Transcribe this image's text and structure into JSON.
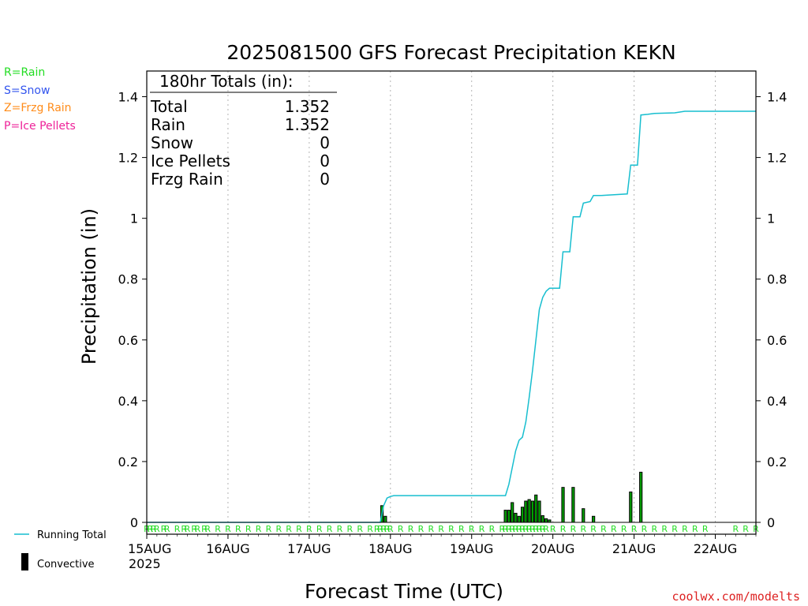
{
  "colors": {
    "running_total": "#17becf",
    "convective_bar": "#000000",
    "precip_bar": "#00a000",
    "rain": "#22dd22",
    "snow": "#3355ee",
    "frzg_rain": "#ff8c1a",
    "ice_pellets": "#ee2299",
    "grid": "#b4b4b4",
    "credit": "#dd2222"
  },
  "chart_data": {
    "type": "line",
    "title": "2025081500 GFS Forecast Precipitation KEKN",
    "xlabel": "Forecast Time (UTC)",
    "ylabel": "Precipitation (in)",
    "x_unit": "hours from 2025-08-15 00 UTC",
    "xlim": [
      0,
      180
    ],
    "ylim": [
      0,
      1.5
    ],
    "y_ticks": [
      0,
      0.2,
      0.4,
      0.6,
      0.8,
      1,
      1.2,
      1.4
    ],
    "y_tick_labels": [
      "0",
      "0.2",
      "0.4",
      "0.6",
      "0.8",
      "1",
      "1.2",
      "1.4"
    ],
    "x_tick_hours": [
      0,
      24,
      48,
      72,
      96,
      120,
      144,
      168
    ],
    "x_tick_labels": [
      "15AUG",
      "16AUG",
      "17AUG",
      "18AUG",
      "19AUG",
      "20AUG",
      "21AUG",
      "22AUG"
    ],
    "x_year_label": "2025",
    "grid": "vertical dotted lines at each day",
    "legend": {
      "running_total": "Running Total",
      "convective": "Convective",
      "ptype_key": [
        "R=Rain",
        "S=Snow",
        "Z=Frzg Rain",
        "P=Ice Pellets"
      ]
    },
    "totals": {
      "header": "180hr Totals (in):",
      "rows": [
        {
          "label": "Total",
          "value": "1.352"
        },
        {
          "label": "Rain",
          "value": "1.352"
        },
        {
          "label": "Snow",
          "value": "0"
        },
        {
          "label": "Ice Pellets",
          "value": "0"
        },
        {
          "label": "Frzg Rain",
          "value": "0"
        }
      ]
    },
    "series": [
      {
        "name": "Running Total",
        "points": [
          [
            0,
            0
          ],
          [
            69,
            0
          ],
          [
            70,
            0.055
          ],
          [
            71,
            0.08
          ],
          [
            72,
            0.085
          ],
          [
            73,
            0.088
          ],
          [
            106,
            0.088
          ],
          [
            107,
            0.125
          ],
          [
            108,
            0.18
          ],
          [
            109,
            0.235
          ],
          [
            110,
            0.27
          ],
          [
            111,
            0.28
          ],
          [
            112,
            0.33
          ],
          [
            113,
            0.41
          ],
          [
            114,
            0.5
          ],
          [
            115,
            0.6
          ],
          [
            116,
            0.7
          ],
          [
            117,
            0.74
          ],
          [
            118,
            0.76
          ],
          [
            119,
            0.77
          ],
          [
            122,
            0.77
          ],
          [
            123,
            0.89
          ],
          [
            125,
            0.89
          ],
          [
            126,
            1.005
          ],
          [
            128,
            1.005
          ],
          [
            129,
            1.05
          ],
          [
            131,
            1.055
          ],
          [
            132,
            1.075
          ],
          [
            134,
            1.075
          ],
          [
            142,
            1.08
          ],
          [
            143,
            1.175
          ],
          [
            145,
            1.175
          ],
          [
            146,
            1.34
          ],
          [
            148,
            1.342
          ],
          [
            150,
            1.345
          ],
          [
            156,
            1.347
          ],
          [
            159,
            1.352
          ],
          [
            180,
            1.352
          ]
        ]
      }
    ],
    "bars": [
      {
        "x": 69.5,
        "y": 0.055
      },
      {
        "x": 70.5,
        "y": 0.02
      },
      {
        "x": 106,
        "y": 0.04
      },
      {
        "x": 107,
        "y": 0.04
      },
      {
        "x": 108,
        "y": 0.065
      },
      {
        "x": 109,
        "y": 0.03
      },
      {
        "x": 110,
        "y": 0.02
      },
      {
        "x": 111,
        "y": 0.05
      },
      {
        "x": 112,
        "y": 0.07
      },
      {
        "x": 113,
        "y": 0.075
      },
      {
        "x": 114,
        "y": 0.07
      },
      {
        "x": 115,
        "y": 0.09
      },
      {
        "x": 116,
        "y": 0.07
      },
      {
        "x": 117,
        "y": 0.022
      },
      {
        "x": 118,
        "y": 0.012
      },
      {
        "x": 119,
        "y": 0.008
      },
      {
        "x": 123,
        "y": 0.115
      },
      {
        "x": 126,
        "y": 0.115
      },
      {
        "x": 129,
        "y": 0.045
      },
      {
        "x": 132,
        "y": 0.02
      },
      {
        "x": 143,
        "y": 0.1
      },
      {
        "x": 146,
        "y": 0.165
      }
    ],
    "ptype_marks": {
      "label": "R",
      "hours": [
        0,
        1,
        2,
        3,
        5,
        6,
        9,
        11,
        12,
        14,
        15,
        17,
        18,
        21,
        24,
        27,
        30,
        33,
        36,
        39,
        42,
        45,
        48,
        51,
        54,
        57,
        60,
        63,
        66,
        68,
        69,
        70,
        71,
        72,
        75,
        78,
        81,
        84,
        87,
        90,
        93,
        96,
        99,
        102,
        105,
        106,
        107,
        108,
        109,
        110,
        111,
        112,
        113,
        114,
        115,
        116,
        117,
        118,
        120,
        123,
        126,
        129,
        132,
        135,
        138,
        141,
        144,
        147,
        150,
        153,
        156,
        159,
        162,
        165,
        174,
        177,
        180
      ]
    }
  },
  "credit": "coolwx.com/modelts"
}
